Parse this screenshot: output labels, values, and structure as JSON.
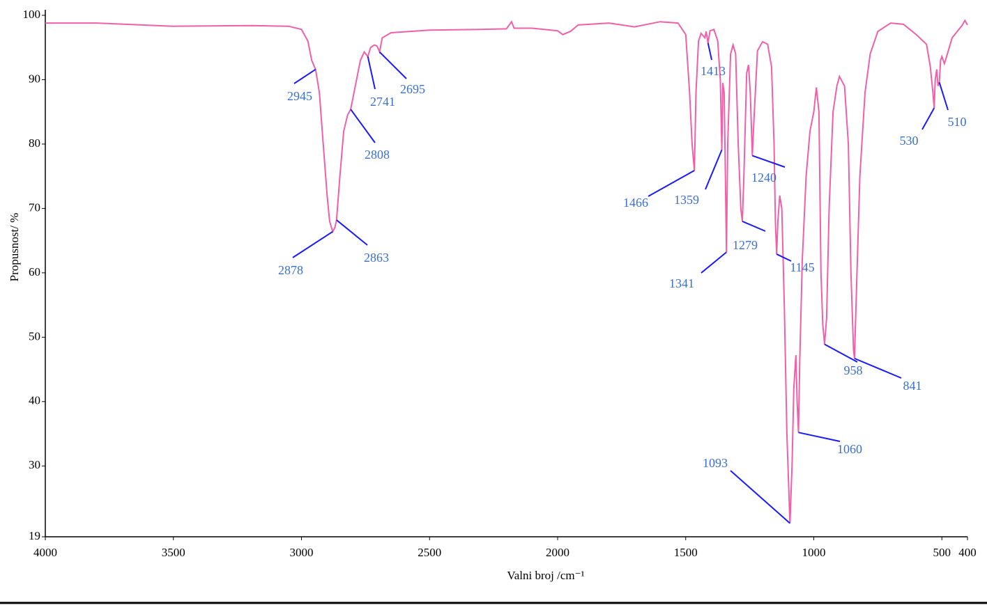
{
  "chart_data": {
    "type": "line",
    "x_label": "Valni broj /cm⁻¹",
    "y_label": "Propusnost/ %",
    "xlim": [
      4000,
      400
    ],
    "ylim": [
      19,
      100
    ],
    "xticks": [
      4000,
      3500,
      3000,
      2500,
      2000,
      1500,
      1000,
      500,
      400
    ],
    "yticks": [
      19,
      30,
      40,
      50,
      60,
      70,
      80,
      90,
      100
    ],
    "x": [
      4000,
      3800,
      3500,
      3200,
      3050,
      3000,
      2975,
      2960,
      2945,
      2930,
      2915,
      2900,
      2890,
      2878,
      2870,
      2863,
      2850,
      2835,
      2820,
      2808,
      2790,
      2770,
      2755,
      2741,
      2730,
      2715,
      2705,
      2695,
      2685,
      2650,
      2500,
      2300,
      2200,
      2180,
      2170,
      2100,
      2000,
      1980,
      1950,
      1920,
      1800,
      1700,
      1600,
      1530,
      1500,
      1485,
      1475,
      1466,
      1460,
      1450,
      1440,
      1425,
      1420,
      1413,
      1405,
      1390,
      1375,
      1365,
      1359,
      1355,
      1350,
      1345,
      1341,
      1336,
      1325,
      1315,
      1305,
      1295,
      1285,
      1279,
      1273,
      1262,
      1255,
      1248,
      1240,
      1232,
      1220,
      1200,
      1180,
      1165,
      1155,
      1150,
      1145,
      1140,
      1133,
      1125,
      1115,
      1105,
      1093,
      1085,
      1078,
      1070,
      1065,
      1060,
      1055,
      1045,
      1030,
      1015,
      1000,
      990,
      980,
      972,
      965,
      958,
      950,
      940,
      925,
      910,
      900,
      880,
      865,
      855,
      845,
      841,
      835,
      820,
      800,
      780,
      750,
      700,
      650,
      600,
      560,
      545,
      535,
      530,
      526,
      520,
      515,
      510,
      505,
      500,
      490,
      480,
      460,
      440,
      420,
      410,
      400
    ],
    "series": [
      {
        "color": "#f060a8",
        "values": [
          98.8,
          98.8,
          98.3,
          98.4,
          98.3,
          97.8,
          96,
          93,
          91.6,
          88,
          80,
          72,
          68,
          66.4,
          67,
          68.2,
          75,
          82,
          84.5,
          85.4,
          89,
          93,
          94.3,
          93.6,
          95,
          95.4,
          95.2,
          94.3,
          96.5,
          97.3,
          97.7,
          97.8,
          97.9,
          99,
          98,
          98,
          97.6,
          97,
          97.5,
          98.5,
          98.8,
          98.2,
          99,
          98.8,
          97,
          88,
          80,
          75.9,
          88,
          96,
          97.2,
          96.5,
          97.5,
          95.7,
          97.6,
          97.8,
          96,
          90,
          79.1,
          89.5,
          88,
          75,
          63.2,
          80,
          94,
          95.4,
          94,
          80,
          70,
          68,
          75,
          91,
          92.3,
          88,
          78.2,
          85,
          94.5,
          95.9,
          95.5,
          92,
          80,
          68,
          62.9,
          68,
          72,
          70,
          55,
          35,
          21.1,
          30,
          42,
          47.2,
          40,
          35.2,
          46,
          62,
          75,
          82,
          85,
          88.8,
          85,
          60,
          52,
          48.9,
          53,
          70,
          85,
          89,
          90.5,
          89,
          80,
          60,
          48,
          46.7,
          55,
          75,
          88,
          94,
          97.5,
          98.8,
          98.6,
          97,
          95.5,
          92,
          88,
          85.6,
          90,
          91.6,
          89,
          89.6,
          93,
          93.6,
          92.5,
          93.8,
          96.5,
          97.5,
          98.5,
          99.2,
          98.5
        ]
      }
    ],
    "annotations": [
      {
        "x": 2945,
        "y": 91.6
      },
      {
        "x": 2878,
        "y": 66.4
      },
      {
        "x": 2863,
        "y": 68.2
      },
      {
        "x": 2808,
        "y": 85.4
      },
      {
        "x": 2741,
        "y": 93.6
      },
      {
        "x": 2695,
        "y": 94.3
      },
      {
        "x": 1466,
        "y": 75.9
      },
      {
        "x": 1413,
        "y": 95.7
      },
      {
        "x": 1359,
        "y": 79.1
      },
      {
        "x": 1341,
        "y": 63.2
      },
      {
        "x": 1279,
        "y": 68
      },
      {
        "x": 1240,
        "y": 78.2
      },
      {
        "x": 1145,
        "y": 62.9
      },
      {
        "x": 1093,
        "y": 21.1
      },
      {
        "x": 1060,
        "y": 35.2
      },
      {
        "x": 958,
        "y": 48.9
      },
      {
        "x": 841,
        "y": 46.7
      },
      {
        "x": 530,
        "y": 85.6
      },
      {
        "x": 510,
        "y": 89.6
      }
    ],
    "annotation_color": "#1a1aff"
  }
}
